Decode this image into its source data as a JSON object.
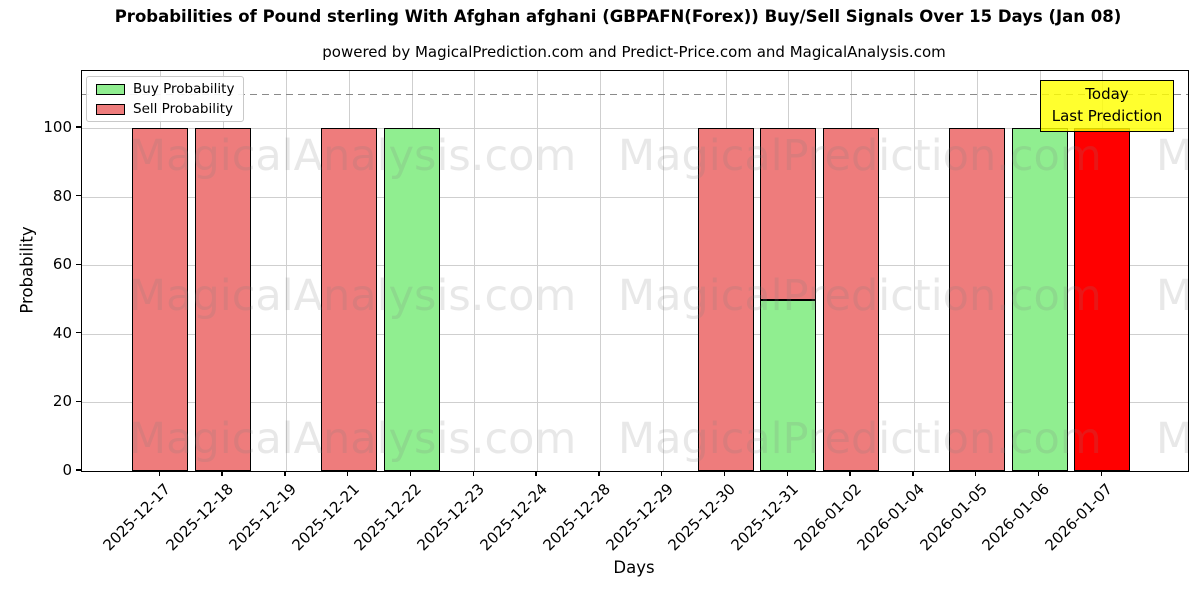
{
  "title": "Probabilities of Pound sterling With Afghan afghani (GBPAFN(Forex)) Buy/Sell Signals Over 15 Days (Jan 08)",
  "subtitle": "powered by MagicalPrediction.com and Predict-Price.com and MagicalAnalysis.com",
  "legend": {
    "position": "upper left",
    "items": [
      {
        "label": "Buy Probability",
        "color": "#90ee90"
      },
      {
        "label": "Sell Probability",
        "color": "#ee7c7c"
      }
    ]
  },
  "annotation_box": {
    "line1": "Today",
    "line2": "Last Prediction",
    "bg_color": "#ffff00"
  },
  "watermarks": [
    "MagicalAnalysis.com",
    "MagicalPrediction.com"
  ],
  "colors": {
    "buy": "#90ee90",
    "sell": "#ee7c7c",
    "today_sell": "#ff0000",
    "bar_edge": "#000000",
    "grid": "#cfcfcf",
    "dashed_line": "#8a8a8a"
  },
  "chart_data": {
    "type": "bar",
    "stacked": true,
    "title": "Probabilities of Pound sterling With Afghan afghani (GBPAFN(Forex)) Buy/Sell Signals Over 15 Days (Jan 08)",
    "xlabel": "Days",
    "ylabel": "Probability",
    "yticks": [
      0,
      20,
      40,
      60,
      80,
      100
    ],
    "ylim": [
      0,
      116.6
    ],
    "dashed_line_y": 110,
    "grid": true,
    "legend_position": "upper left",
    "categories": [
      "2025-12-17",
      "2025-12-18",
      "2025-12-19",
      "2025-12-21",
      "2025-12-22",
      "2025-12-23",
      "2025-12-24",
      "2025-12-28",
      "2025-12-29",
      "2025-12-30",
      "2025-12-31",
      "2026-01-02",
      "2026-01-04",
      "2026-01-05",
      "2026-01-06",
      "2026-01-07"
    ],
    "series": [
      {
        "name": "Buy Probability",
        "values": [
          0,
          0,
          0,
          0,
          100,
          0,
          0,
          0,
          0,
          0,
          50,
          0,
          0,
          0,
          100,
          0
        ]
      },
      {
        "name": "Sell Probability",
        "values": [
          100,
          100,
          0,
          100,
          0,
          0,
          0,
          0,
          0,
          100,
          50,
          100,
          0,
          100,
          0,
          100
        ]
      }
    ],
    "today_index": 15,
    "today_note": "Last bar (2026-01-07) drawn in bright red as Today / Last Prediction"
  }
}
